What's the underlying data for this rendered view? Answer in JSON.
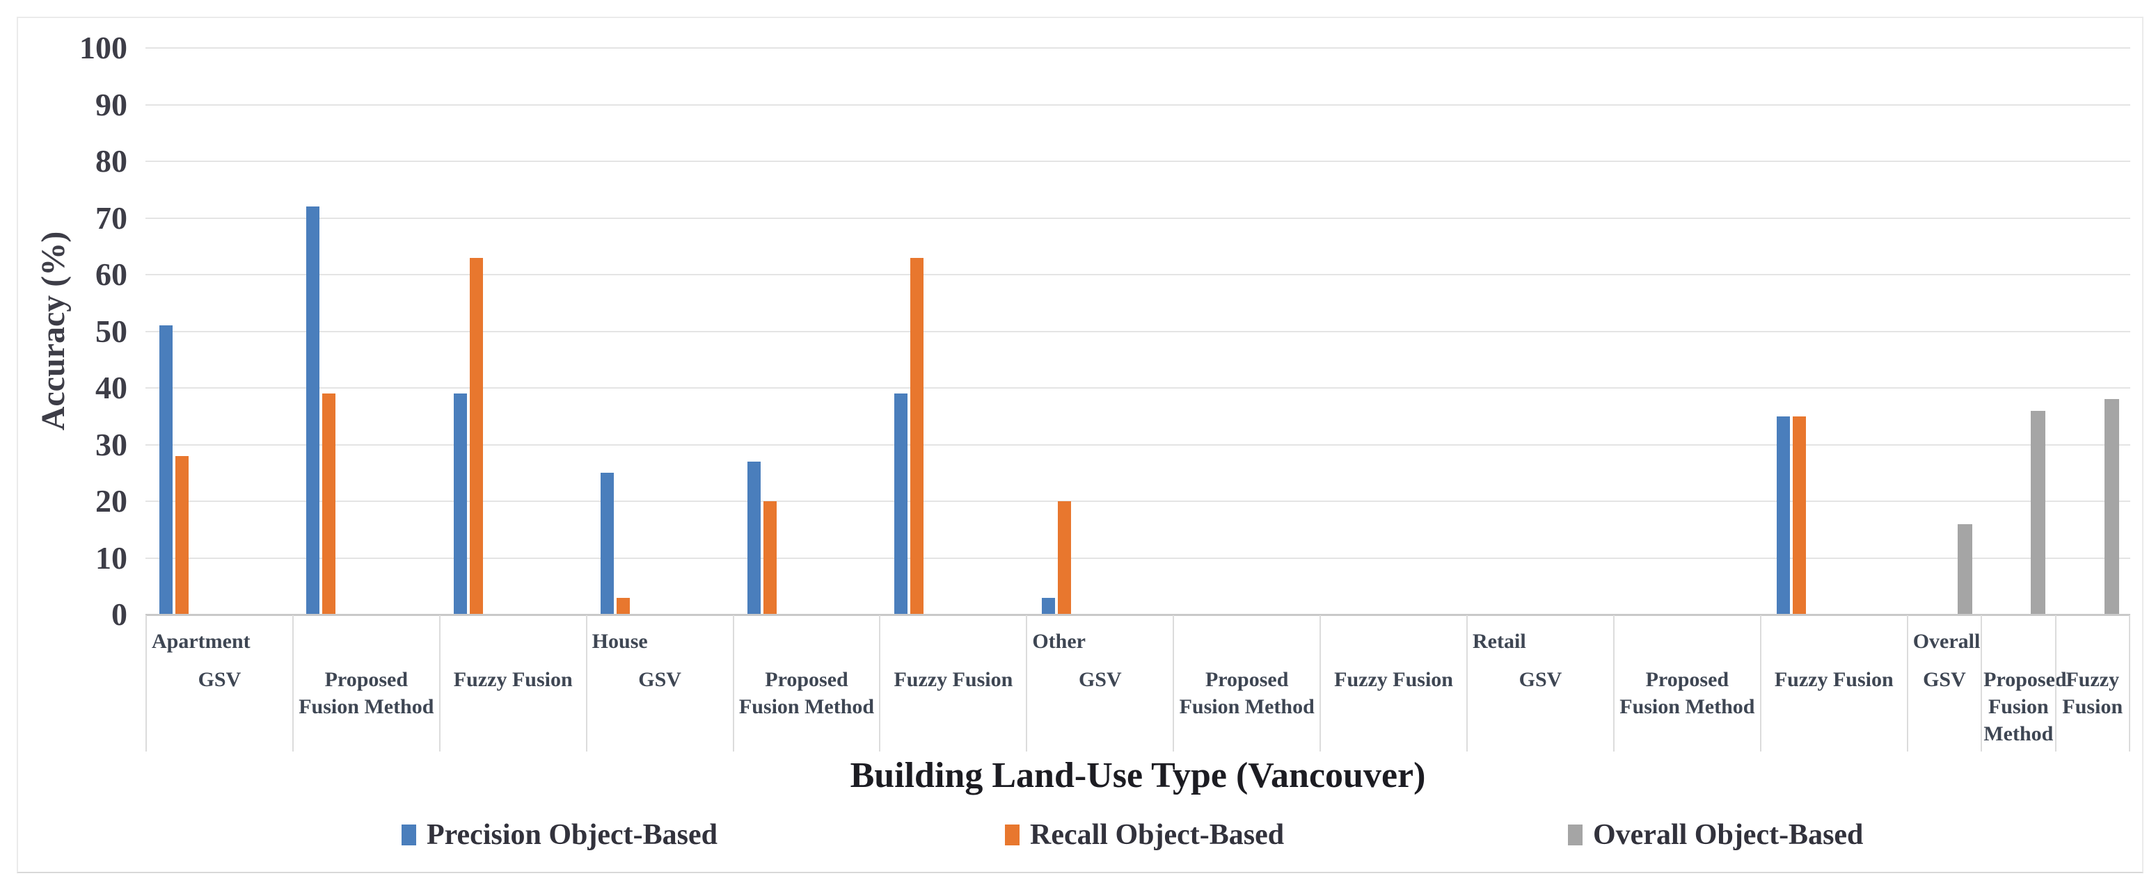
{
  "chart_data": {
    "type": "bar",
    "title": "",
    "xlabel": "Building Land-Use Type (Vancouver)",
    "ylabel": "Accuracy (%)",
    "ylim": [
      0,
      100
    ],
    "yticks": [
      0,
      10,
      20,
      30,
      40,
      50,
      60,
      70,
      80,
      90,
      100
    ],
    "grid": true,
    "legend_position": "bottom",
    "series": [
      {
        "key": "precision",
        "name": "Precision Object-Based",
        "color": "#4a7ebc"
      },
      {
        "key": "recall",
        "name": "Recall Object-Based",
        "color": "#e8772e"
      },
      {
        "key": "overall",
        "name": "Overall Object-Based",
        "color": "#a5a5a5"
      }
    ],
    "groups": [
      {
        "label": "Apartment",
        "size": "wide",
        "categories": [
          {
            "label": "GSV",
            "values": {
              "precision": 51,
              "recall": 28,
              "overall": 0
            }
          },
          {
            "label": "Proposed Fusion Method",
            "values": {
              "precision": 72,
              "recall": 39,
              "overall": 0
            }
          },
          {
            "label": "Fuzzy Fusion",
            "values": {
              "precision": 39,
              "recall": 63,
              "overall": 0
            }
          }
        ]
      },
      {
        "label": "House",
        "size": "wide",
        "categories": [
          {
            "label": "GSV",
            "values": {
              "precision": 25,
              "recall": 3,
              "overall": 0
            }
          },
          {
            "label": "Proposed Fusion Method",
            "values": {
              "precision": 27,
              "recall": 20,
              "overall": 0
            }
          },
          {
            "label": "Fuzzy Fusion",
            "values": {
              "precision": 39,
              "recall": 63,
              "overall": 0
            }
          }
        ]
      },
      {
        "label": "Other",
        "size": "wide",
        "categories": [
          {
            "label": "GSV",
            "values": {
              "precision": 3,
              "recall": 20,
              "overall": 0
            }
          },
          {
            "label": "Proposed Fusion Method",
            "values": {
              "precision": 0,
              "recall": 0,
              "overall": 0
            }
          },
          {
            "label": "Fuzzy Fusion",
            "values": {
              "precision": 0,
              "recall": 0,
              "overall": 0
            }
          }
        ]
      },
      {
        "label": "Retail",
        "size": "wide",
        "categories": [
          {
            "label": "GSV",
            "values": {
              "precision": 0,
              "recall": 0,
              "overall": 0
            }
          },
          {
            "label": "Proposed Fusion Method",
            "values": {
              "precision": 0,
              "recall": 0,
              "overall": 0
            }
          },
          {
            "label": "Fuzzy Fusion",
            "values": {
              "precision": 35,
              "recall": 35,
              "overall": 0
            }
          }
        ]
      },
      {
        "label": "Overall",
        "size": "narrow",
        "categories": [
          {
            "label": "GSV",
            "values": {
              "precision": 0,
              "recall": 0,
              "overall": 16
            }
          },
          {
            "label": "Proposed Fusion Method",
            "values": {
              "precision": 0,
              "recall": 0,
              "overall": 36
            }
          },
          {
            "label": "Fuzzy Fusion",
            "values": {
              "precision": 0,
              "recall": 0,
              "overall": 38
            }
          }
        ]
      }
    ]
  },
  "legend": {
    "items": [
      {
        "label": "Precision Object-Based",
        "series": "precision"
      },
      {
        "label": "Recall Object-Based",
        "series": "recall"
      },
      {
        "label": "Overall Object-Based",
        "series": "overall"
      }
    ]
  }
}
